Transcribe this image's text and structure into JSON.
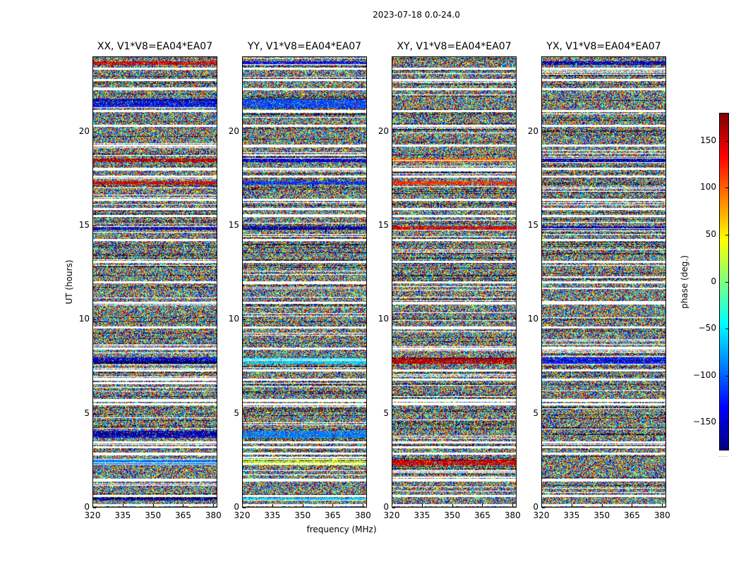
{
  "figure_title": "2023-07-18 0.0-24.0",
  "colorbar_footnote": ".....",
  "chart_data": {
    "type": "heatmap",
    "title": "2023-07-18 0.0-24.0",
    "xlabel": "frequency (MHz)",
    "ylabel": "UT (hours)",
    "xlim": [
      320,
      382
    ],
    "ylim": [
      0,
      24
    ],
    "x_ticks": [
      320,
      335,
      350,
      365,
      380
    ],
    "y_ticks": [
      0,
      5,
      10,
      15,
      20
    ],
    "colorbar": {
      "label": "phase (deg.)",
      "range": [
        -180,
        180
      ],
      "ticks": [
        150,
        100,
        50,
        0,
        -50,
        -100,
        -150
      ],
      "tick_labels": [
        "150",
        "100",
        "50",
        "0",
        "−50",
        "−100",
        "−150"
      ],
      "colormap": "jet"
    },
    "panels": [
      {
        "title": "XX, V1*V8=EA04*EA07",
        "coherent_bands": [
          [
            0.35,
            0.5,
            -150
          ],
          [
            2.25,
            2.55,
            -90
          ],
          [
            3.7,
            4.1,
            -150
          ],
          [
            7.65,
            8.0,
            -150
          ],
          [
            14.8,
            15.0,
            -160
          ],
          [
            17.2,
            17.4,
            150
          ],
          [
            18.4,
            18.6,
            160
          ],
          [
            21.3,
            21.8,
            -130
          ],
          [
            23.6,
            23.8,
            150
          ]
        ]
      },
      {
        "title": "YY, V1*V8=EA04*EA07",
        "coherent_bands": [
          [
            0.35,
            0.5,
            -60
          ],
          [
            2.25,
            2.55,
            30
          ],
          [
            3.7,
            4.1,
            -90
          ],
          [
            7.65,
            8.0,
            -60
          ],
          [
            14.8,
            15.0,
            -160
          ],
          [
            17.2,
            17.4,
            -120
          ],
          [
            18.4,
            18.6,
            -150
          ],
          [
            21.3,
            21.8,
            -110
          ],
          [
            23.6,
            23.8,
            -140
          ]
        ]
      },
      {
        "title": "XY, V1*V8=EA04*EA07",
        "coherent_bands": [
          [
            2.25,
            2.55,
            150
          ],
          [
            7.65,
            8.0,
            160
          ],
          [
            14.8,
            15.0,
            150
          ],
          [
            17.2,
            17.4,
            120
          ],
          [
            18.4,
            18.6,
            100
          ]
        ]
      },
      {
        "title": "YX, V1*V8=EA04*EA07",
        "coherent_bands": [
          [
            7.65,
            8.0,
            -130
          ],
          [
            14.8,
            15.0,
            -160
          ],
          [
            18.4,
            18.6,
            -150
          ],
          [
            23.6,
            23.8,
            -160
          ]
        ]
      }
    ],
    "flagged_hours": [
      0.1,
      0.6,
      1.45,
      2.85,
      3.2,
      3.45,
      5.5,
      5.7,
      6.8,
      7.3,
      8.45,
      9.6,
      10.9,
      12.0,
      13.1,
      14.25,
      15.55,
      15.9,
      16.4,
      17.65,
      18.05,
      19.3,
      20.35,
      21.15,
      22.3,
      22.8,
      23.4
    ]
  }
}
